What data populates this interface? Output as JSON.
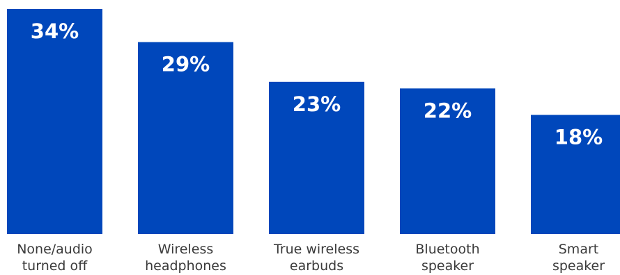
{
  "chart_data": {
    "type": "bar",
    "categories": [
      [
        "None/audio",
        "turned off"
      ],
      [
        "Wireless",
        "headphones"
      ],
      [
        "True wireless",
        "earbuds"
      ],
      [
        "Bluetooth",
        "speaker"
      ],
      [
        "Smart",
        "speaker"
      ]
    ],
    "values": [
      34,
      29,
      23,
      22,
      18
    ],
    "value_labels": [
      "34%",
      "29%",
      "23%",
      "22%",
      "18%"
    ],
    "bar_color": "#0047BB",
    "grid": false,
    "legend": "none"
  }
}
